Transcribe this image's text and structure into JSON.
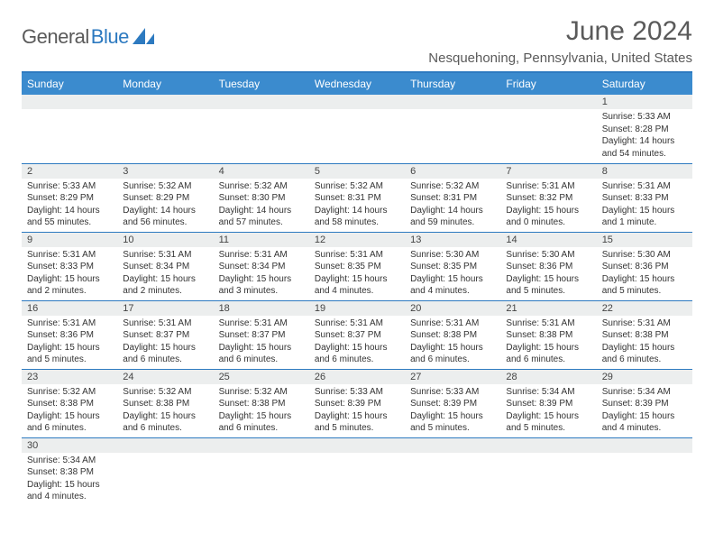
{
  "logo": {
    "part1": "General",
    "part2": "Blue"
  },
  "title": "June 2024",
  "location": "Nesquehoning, Pennsylvania, United States",
  "colors": {
    "header_bg": "#3b8bce",
    "header_text": "#ffffff",
    "accent": "#2d7ac0",
    "daynum_bg": "#eceeee",
    "text": "#333333",
    "logo_gray": "#5a5a5a"
  },
  "weekdays": [
    "Sunday",
    "Monday",
    "Tuesday",
    "Wednesday",
    "Thursday",
    "Friday",
    "Saturday"
  ],
  "weeks": [
    [
      null,
      null,
      null,
      null,
      null,
      null,
      {
        "n": 1,
        "sr": "5:33 AM",
        "ss": "8:28 PM",
        "dl": "14 hours and 54 minutes."
      }
    ],
    [
      {
        "n": 2,
        "sr": "5:33 AM",
        "ss": "8:29 PM",
        "dl": "14 hours and 55 minutes."
      },
      {
        "n": 3,
        "sr": "5:32 AM",
        "ss": "8:29 PM",
        "dl": "14 hours and 56 minutes."
      },
      {
        "n": 4,
        "sr": "5:32 AM",
        "ss": "8:30 PM",
        "dl": "14 hours and 57 minutes."
      },
      {
        "n": 5,
        "sr": "5:32 AM",
        "ss": "8:31 PM",
        "dl": "14 hours and 58 minutes."
      },
      {
        "n": 6,
        "sr": "5:32 AM",
        "ss": "8:31 PM",
        "dl": "14 hours and 59 minutes."
      },
      {
        "n": 7,
        "sr": "5:31 AM",
        "ss": "8:32 PM",
        "dl": "15 hours and 0 minutes."
      },
      {
        "n": 8,
        "sr": "5:31 AM",
        "ss": "8:33 PM",
        "dl": "15 hours and 1 minute."
      }
    ],
    [
      {
        "n": 9,
        "sr": "5:31 AM",
        "ss": "8:33 PM",
        "dl": "15 hours and 2 minutes."
      },
      {
        "n": 10,
        "sr": "5:31 AM",
        "ss": "8:34 PM",
        "dl": "15 hours and 2 minutes."
      },
      {
        "n": 11,
        "sr": "5:31 AM",
        "ss": "8:34 PM",
        "dl": "15 hours and 3 minutes."
      },
      {
        "n": 12,
        "sr": "5:31 AM",
        "ss": "8:35 PM",
        "dl": "15 hours and 4 minutes."
      },
      {
        "n": 13,
        "sr": "5:30 AM",
        "ss": "8:35 PM",
        "dl": "15 hours and 4 minutes."
      },
      {
        "n": 14,
        "sr": "5:30 AM",
        "ss": "8:36 PM",
        "dl": "15 hours and 5 minutes."
      },
      {
        "n": 15,
        "sr": "5:30 AM",
        "ss": "8:36 PM",
        "dl": "15 hours and 5 minutes."
      }
    ],
    [
      {
        "n": 16,
        "sr": "5:31 AM",
        "ss": "8:36 PM",
        "dl": "15 hours and 5 minutes."
      },
      {
        "n": 17,
        "sr": "5:31 AM",
        "ss": "8:37 PM",
        "dl": "15 hours and 6 minutes."
      },
      {
        "n": 18,
        "sr": "5:31 AM",
        "ss": "8:37 PM",
        "dl": "15 hours and 6 minutes."
      },
      {
        "n": 19,
        "sr": "5:31 AM",
        "ss": "8:37 PM",
        "dl": "15 hours and 6 minutes."
      },
      {
        "n": 20,
        "sr": "5:31 AM",
        "ss": "8:38 PM",
        "dl": "15 hours and 6 minutes."
      },
      {
        "n": 21,
        "sr": "5:31 AM",
        "ss": "8:38 PM",
        "dl": "15 hours and 6 minutes."
      },
      {
        "n": 22,
        "sr": "5:31 AM",
        "ss": "8:38 PM",
        "dl": "15 hours and 6 minutes."
      }
    ],
    [
      {
        "n": 23,
        "sr": "5:32 AM",
        "ss": "8:38 PM",
        "dl": "15 hours and 6 minutes."
      },
      {
        "n": 24,
        "sr": "5:32 AM",
        "ss": "8:38 PM",
        "dl": "15 hours and 6 minutes."
      },
      {
        "n": 25,
        "sr": "5:32 AM",
        "ss": "8:38 PM",
        "dl": "15 hours and 6 minutes."
      },
      {
        "n": 26,
        "sr": "5:33 AM",
        "ss": "8:39 PM",
        "dl": "15 hours and 5 minutes."
      },
      {
        "n": 27,
        "sr": "5:33 AM",
        "ss": "8:39 PM",
        "dl": "15 hours and 5 minutes."
      },
      {
        "n": 28,
        "sr": "5:34 AM",
        "ss": "8:39 PM",
        "dl": "15 hours and 5 minutes."
      },
      {
        "n": 29,
        "sr": "5:34 AM",
        "ss": "8:39 PM",
        "dl": "15 hours and 4 minutes."
      }
    ],
    [
      {
        "n": 30,
        "sr": "5:34 AM",
        "ss": "8:38 PM",
        "dl": "15 hours and 4 minutes."
      },
      null,
      null,
      null,
      null,
      null,
      null
    ]
  ],
  "labels": {
    "sunrise": "Sunrise:",
    "sunset": "Sunset:",
    "daylight": "Daylight:"
  }
}
